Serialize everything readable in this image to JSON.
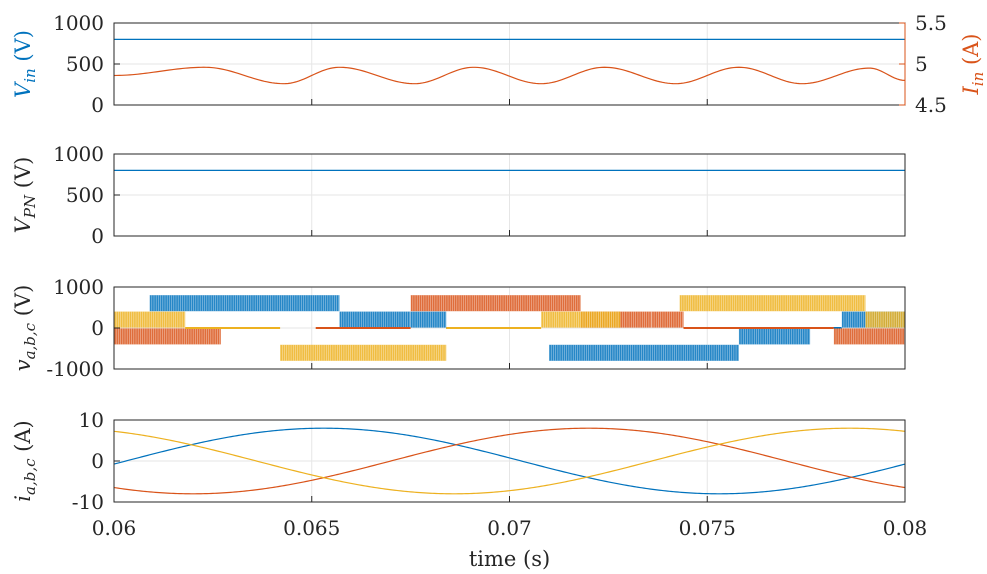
{
  "chart_data": [
    {
      "type": "line",
      "ylabel": "V_in (V)",
      "ylabel_right": "I_in (A)",
      "xlim": [
        0.06,
        0.08
      ],
      "ylim": [
        0,
        1000
      ],
      "ylim_right": [
        4.5,
        5.5
      ],
      "yticks": [
        "0",
        "500",
        "1000"
      ],
      "yticks_right": [
        "4.5",
        "5",
        "5.5"
      ],
      "grid": true,
      "colors": {
        "left": "#0072BD",
        "right": "#D95319"
      },
      "series": [
        {
          "name": "V_in",
          "axis": "left",
          "x": [
            0.06,
            0.08
          ],
          "values": [
            800,
            800
          ]
        },
        {
          "name": "I_in",
          "axis": "right",
          "x": [
            0.06,
            0.0623,
            0.0643,
            0.0657,
            0.0676,
            0.0691,
            0.0708,
            0.0724,
            0.0742,
            0.0758,
            0.0774,
            0.0791,
            0.08
          ],
          "values": [
            4.86,
            4.96,
            4.76,
            4.96,
            4.76,
            4.96,
            4.76,
            4.96,
            4.76,
            4.96,
            4.76,
            4.95,
            4.8
          ]
        }
      ]
    },
    {
      "type": "line",
      "ylabel": "V_PN (V)",
      "xlim": [
        0.06,
        0.08
      ],
      "ylim": [
        0,
        1000
      ],
      "yticks": [
        "0",
        "500",
        "1000"
      ],
      "grid": true,
      "series": [
        {
          "name": "V_PN",
          "x": [
            0.06,
            0.08
          ],
          "values": [
            800,
            800
          ],
          "color": "#0072BD"
        }
      ]
    },
    {
      "type": "line",
      "ylabel": "v_a,b,c (V)",
      "xlim": [
        0.06,
        0.08
      ],
      "ylim": [
        -1000,
        1000
      ],
      "yticks": [
        "-1000",
        "0",
        "1000"
      ],
      "grid": true,
      "series": [
        {
          "name": "v_a",
          "color": "#0072BD",
          "segments": [
            {
              "from": 0.0609,
              "to": 0.0657,
              "value": 800
            },
            {
              "from": 0.0657,
              "to": 0.0675,
              "value": 400
            },
            {
              "from": 0.0675,
              "to": 0.0684,
              "value": 400
            },
            {
              "from": 0.0684,
              "to": 0.0692,
              "value": 0
            },
            {
              "from": 0.0692,
              "to": 0.07,
              "value": 0
            },
            {
              "from": 0.071,
              "to": 0.0758,
              "value": -800
            },
            {
              "from": 0.0758,
              "to": 0.0776,
              "value": -400
            },
            {
              "from": 0.0776,
              "to": 0.0784,
              "value": 0
            },
            {
              "from": 0.0784,
              "to": 0.08,
              "value": 400
            }
          ]
        },
        {
          "name": "v_b",
          "color": "#D95319",
          "segments": [
            {
              "from": 0.06,
              "to": 0.0627,
              "value": -400
            },
            {
              "from": 0.0651,
              "to": 0.0675,
              "value": 0
            },
            {
              "from": 0.0675,
              "to": 0.0718,
              "value": 800
            },
            {
              "from": 0.0718,
              "to": 0.0736,
              "value": 400
            },
            {
              "from": 0.0736,
              "to": 0.0744,
              "value": 400
            },
            {
              "from": 0.0744,
              "to": 0.0782,
              "value": 0
            },
            {
              "from": 0.0782,
              "to": 0.08,
              "value": -400
            }
          ]
        },
        {
          "name": "v_c",
          "color": "#EDB120",
          "segments": [
            {
              "from": 0.06,
              "to": 0.0618,
              "value": 400
            },
            {
              "from": 0.0618,
              "to": 0.0642,
              "value": 0
            },
            {
              "from": 0.0642,
              "to": 0.0684,
              "value": -800
            },
            {
              "from": 0.0684,
              "to": 0.0708,
              "value": 0
            },
            {
              "from": 0.0708,
              "to": 0.0728,
              "value": 400
            },
            {
              "from": 0.0743,
              "to": 0.079,
              "value": 800
            },
            {
              "from": 0.079,
              "to": 0.08,
              "value": 400
            }
          ]
        }
      ]
    },
    {
      "type": "line",
      "ylabel": "i_a,b,c (A)",
      "xlabel": "time (s)",
      "xlim": [
        0.06,
        0.08
      ],
      "ylim": [
        -10,
        10
      ],
      "yticks": [
        "-10",
        "0",
        "10"
      ],
      "xticks": [
        "0.06",
        "0.065",
        "0.07",
        "0.075",
        "0.08"
      ],
      "grid": true,
      "series": [
        {
          "name": "i_a",
          "color": "#0072BD",
          "amplitude": 8,
          "frequency_hz": 50,
          "phase_peak_x": 0.0653
        },
        {
          "name": "i_b",
          "color": "#D95319",
          "amplitude": 8,
          "frequency_hz": 50,
          "phase_peak_x": 0.072
        },
        {
          "name": "i_c",
          "color": "#EDB120",
          "amplitude": 8,
          "frequency_hz": 50,
          "phase_peak_x": 0.0586
        }
      ]
    }
  ]
}
